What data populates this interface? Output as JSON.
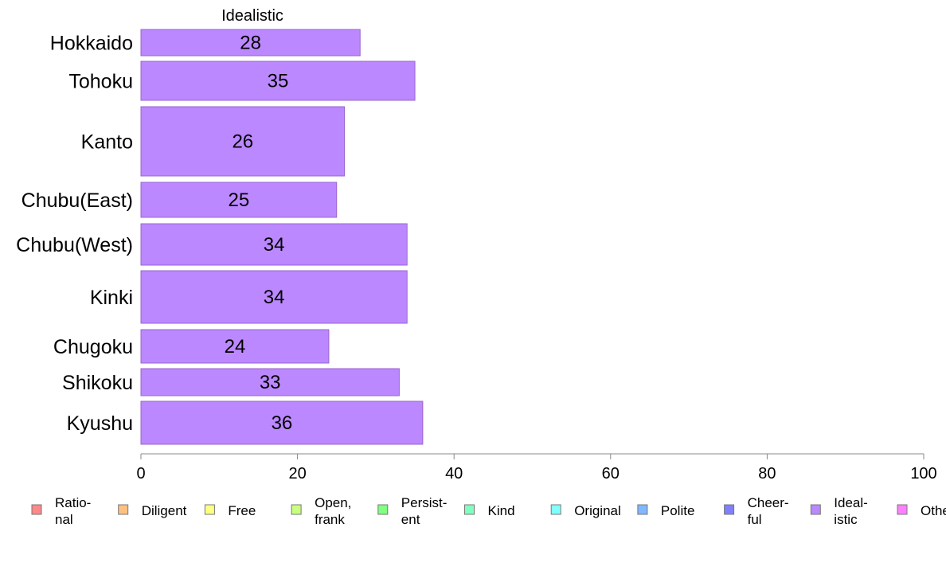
{
  "chart_data": {
    "type": "bar",
    "orientation": "horizontal",
    "title": "Idealistic",
    "categories": [
      "Hokkaido",
      "Tohoku",
      "Kanto",
      "Chubu(East)",
      "Chubu(West)",
      "Kinki",
      "Chugoku",
      "Shikoku",
      "Kyushu"
    ],
    "values": [
      28,
      35,
      26,
      25,
      34,
      34,
      24,
      33,
      36
    ],
    "xlim": [
      0,
      100
    ],
    "xticks": [
      "0",
      "20",
      "40",
      "60",
      "80",
      "100"
    ],
    "xlabel": "",
    "ylabel": "",
    "grid": false,
    "bar_color": "#bb88ff",
    "legend": {
      "placement": "bottom",
      "items": [
        {
          "label": [
            "Ratio-",
            "nal"
          ],
          "color": "#ff8888"
        },
        {
          "label": [
            "Diligent"
          ],
          "color": "#ffc080"
        },
        {
          "label": [
            "Free"
          ],
          "color": "#ffff80"
        },
        {
          "label": [
            "Open,",
            "frank"
          ],
          "color": "#c8ff80"
        },
        {
          "label": [
            "Persist-",
            "ent"
          ],
          "color": "#80ff80"
        },
        {
          "label": [
            "Kind"
          ],
          "color": "#80ffc0"
        },
        {
          "label": [
            "Original"
          ],
          "color": "#80ffff"
        },
        {
          "label": [
            "Polite"
          ],
          "color": "#80b8ff"
        },
        {
          "label": [
            "Cheer-",
            "ful"
          ],
          "color": "#8080ff"
        },
        {
          "label": [
            "Ideal-",
            "istic"
          ],
          "color": "#bb88ff"
        },
        {
          "label": [
            "Other"
          ],
          "color": "#ff80ff"
        }
      ]
    }
  }
}
